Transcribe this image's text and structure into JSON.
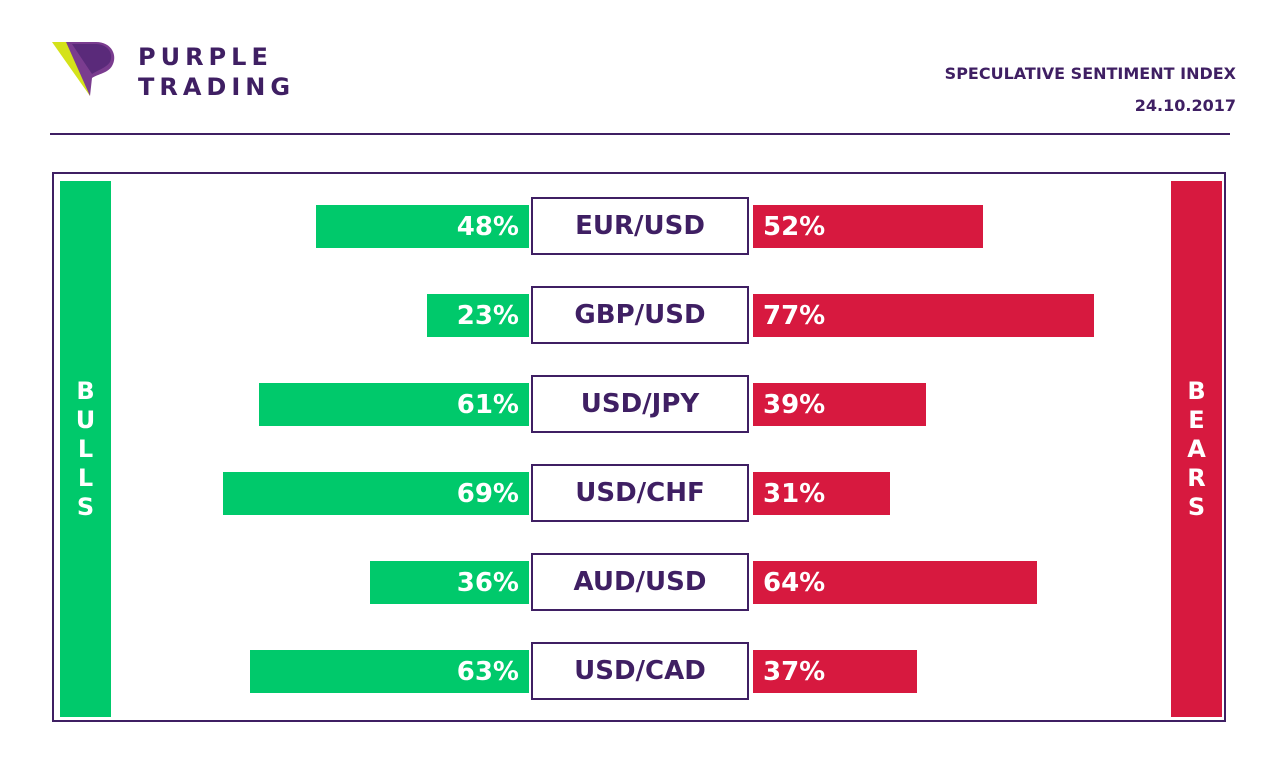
{
  "brand": {
    "name_line1": "PURPLE",
    "name_line2": "TRADING"
  },
  "header": {
    "title": "SPECULATIVE SENTIMENT INDEX",
    "date": "24.10.2017"
  },
  "colors": {
    "purple": "#3f1f63",
    "bull_green": "#00c96b",
    "bear_red": "#d7193f",
    "logo_lime": "#d4e21a"
  },
  "sides": {
    "bulls": "BULLS",
    "bears": "BEARS"
  },
  "chart_data": {
    "type": "bar",
    "categories": [
      "EUR/USD",
      "GBP/USD",
      "USD/JPY",
      "USD/CHF",
      "AUD/USD",
      "USD/CAD"
    ],
    "series": [
      {
        "name": "BULLS",
        "values": [
          48,
          23,
          61,
          69,
          36,
          63
        ],
        "labels": [
          "48%",
          "23%",
          "61%",
          "69%",
          "36%",
          "63%"
        ]
      },
      {
        "name": "BEARS",
        "values": [
          52,
          77,
          39,
          31,
          64,
          37
        ],
        "labels": [
          "52%",
          "77%",
          "39%",
          "31%",
          "64%",
          "37%"
        ]
      }
    ],
    "ylim": [
      0,
      100
    ]
  }
}
